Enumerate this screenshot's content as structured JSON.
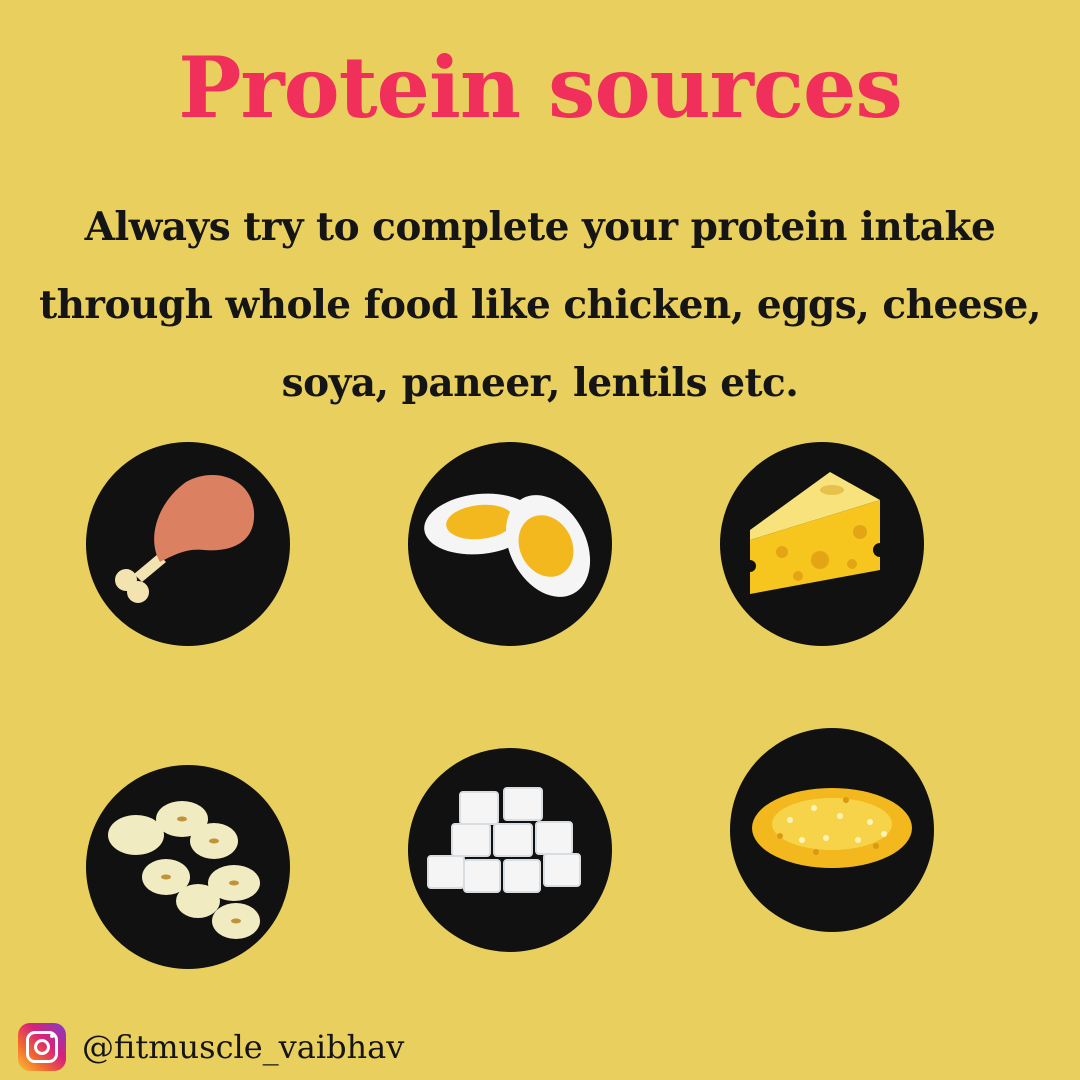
{
  "title": "Protein sources",
  "subtitle_lines": [
    "Always try to complete your protein intake",
    "through whole food like chicken, eggs, cheese,",
    "soya, paneer, lentils etc."
  ],
  "foods": [
    {
      "icon": "chicken-leg-icon"
    },
    {
      "icon": "boiled-egg-icon"
    },
    {
      "icon": "cheese-icon"
    },
    {
      "icon": "soybeans-icon"
    },
    {
      "icon": "paneer-cubes-icon"
    },
    {
      "icon": "lentils-icon"
    }
  ],
  "footer": {
    "icon": "instagram-icon",
    "handle": "@fitmuscle_vaibhav"
  },
  "colors": {
    "background": "#e8cf5e",
    "title": "#f0305a",
    "text": "#151515",
    "circle": "#111111"
  }
}
